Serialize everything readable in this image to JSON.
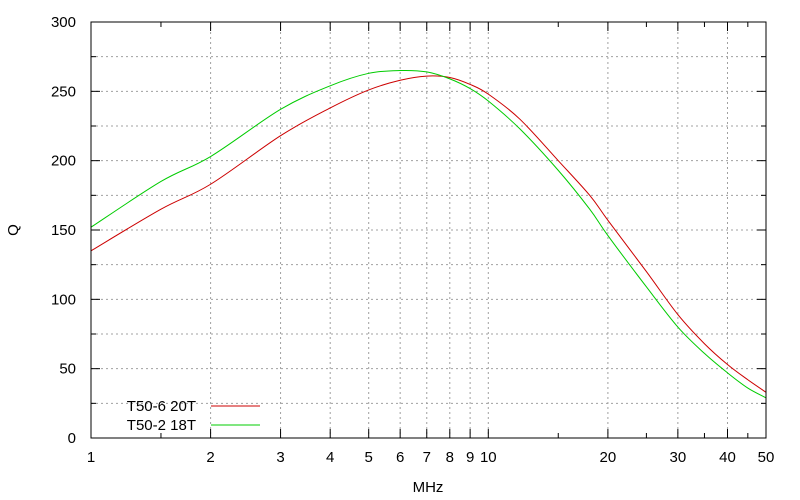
{
  "chart_data": {
    "type": "line",
    "xlabel": "MHz",
    "ylabel": "Q",
    "x_scale": "log",
    "xlim": [
      1,
      50
    ],
    "ylim": [
      0,
      300
    ],
    "x_ticks": [
      1,
      2,
      3,
      4,
      5,
      6,
      7,
      8,
      9,
      10,
      20,
      30,
      40,
      50
    ],
    "x_tick_labels": [
      "1",
      "2",
      "3",
      "4",
      "5",
      "6",
      "7",
      "8",
      "9",
      "10",
      "20",
      "30",
      "40",
      "50"
    ],
    "x_minor_ticks": [
      1.5,
      15,
      25,
      35,
      45
    ],
    "y_ticks": [
      0,
      50,
      100,
      150,
      200,
      250,
      300
    ],
    "y_tick_labels": [
      "0",
      "50",
      "100",
      "150",
      "200",
      "250",
      "300"
    ],
    "y_minor_ticks": [
      25,
      75,
      125,
      175,
      225,
      275
    ],
    "grid": true,
    "legend_position": "bottom-left",
    "series": [
      {
        "name": "T50-6 20T",
        "color": "#cc0000",
        "x": [
          1,
          1.5,
          2,
          3,
          4,
          5,
          6,
          7,
          8,
          9,
          10,
          12,
          15,
          18,
          20,
          25,
          30,
          35,
          40,
          45,
          50
        ],
        "y": [
          135,
          165,
          183,
          218,
          238,
          251,
          258,
          261,
          260,
          255,
          248,
          230,
          200,
          175,
          157,
          120,
          89,
          68,
          53,
          42,
          33
        ]
      },
      {
        "name": "T50-2 18T",
        "color": "#00cc00",
        "x": [
          1,
          1.5,
          2,
          3,
          4,
          5,
          6,
          7,
          8,
          9,
          10,
          12,
          15,
          18,
          20,
          25,
          30,
          35,
          40,
          45,
          50
        ],
        "y": [
          152,
          185,
          203,
          237,
          254,
          263,
          265,
          264,
          259,
          252,
          243,
          223,
          193,
          165,
          146,
          109,
          80,
          61,
          47,
          36,
          29
        ]
      }
    ]
  }
}
